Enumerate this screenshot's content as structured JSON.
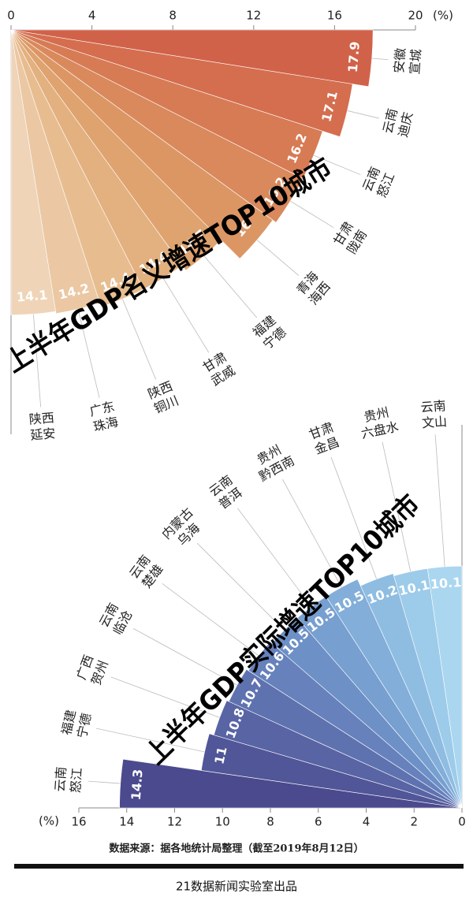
{
  "chart_data": [
    {
      "type": "radial_bar",
      "title": "上半年GDP名义增速TOP10城市",
      "unit": "(%)",
      "categories": [
        [
          "安徽",
          "宣城"
        ],
        [
          "云南",
          "迪庆"
        ],
        [
          "云南",
          "怒江"
        ],
        [
          "甘肃",
          "陇南"
        ],
        [
          "青海",
          "海西"
        ],
        [
          "福建",
          "宁德"
        ],
        [
          "甘肃",
          "武威"
        ],
        [
          "陕西",
          "铜川"
        ],
        [
          "广东",
          "珠海"
        ],
        [
          "陕西",
          "延安"
        ]
      ],
      "values": [
        17.9,
        17.1,
        16.2,
        16.2,
        16,
        14.7,
        14.4,
        14.4,
        14.2,
        14.1
      ],
      "colors": [
        "#d1624a",
        "#d46e4f",
        "#d77b55",
        "#d9895c",
        "#dc9664",
        "#dfa36f",
        "#e3b07f",
        "#e7bd90",
        "#ebc8a3",
        "#efd4b8"
      ],
      "rlim": [
        0,
        20
      ],
      "rticks": [
        0,
        4,
        8,
        12,
        16,
        20
      ]
    },
    {
      "type": "radial_bar",
      "title": "上半年GDP实际增速TOP10城市",
      "unit": "(%)",
      "categories": [
        [
          "云南",
          "怒江"
        ],
        [
          "福建",
          "宁德"
        ],
        [
          "广西",
          "贺州"
        ],
        [
          "云南",
          "临沧"
        ],
        [
          "云南",
          "楚雄"
        ],
        [
          "内蒙古",
          "乌海"
        ],
        [
          "云南",
          "普洱"
        ],
        [
          "贵州",
          "黔西南"
        ],
        [
          "甘肃",
          "金昌"
        ],
        [
          "贵州",
          "六盘水"
        ],
        [
          "云南",
          "文山"
        ]
      ],
      "values": [
        14.3,
        11,
        10.8,
        10.7,
        10.6,
        10.5,
        10.5,
        10.5,
        10.2,
        10.1,
        10.1
      ],
      "colors": [
        "#4b4a8e",
        "#515698",
        "#5864a4",
        "#5f72b0",
        "#6681bc",
        "#6d90c6",
        "#779fd0",
        "#82aed9",
        "#8fbde2",
        "#9dcbea",
        "#aad6f0"
      ],
      "rlim": [
        0,
        16
      ],
      "rticks": [
        0,
        2,
        4,
        6,
        8,
        10,
        12,
        14,
        16
      ]
    }
  ],
  "source": "数据来源：据各地统计局整理（截至2019年8月12日）",
  "credit": "21数据新闻实验室出品"
}
